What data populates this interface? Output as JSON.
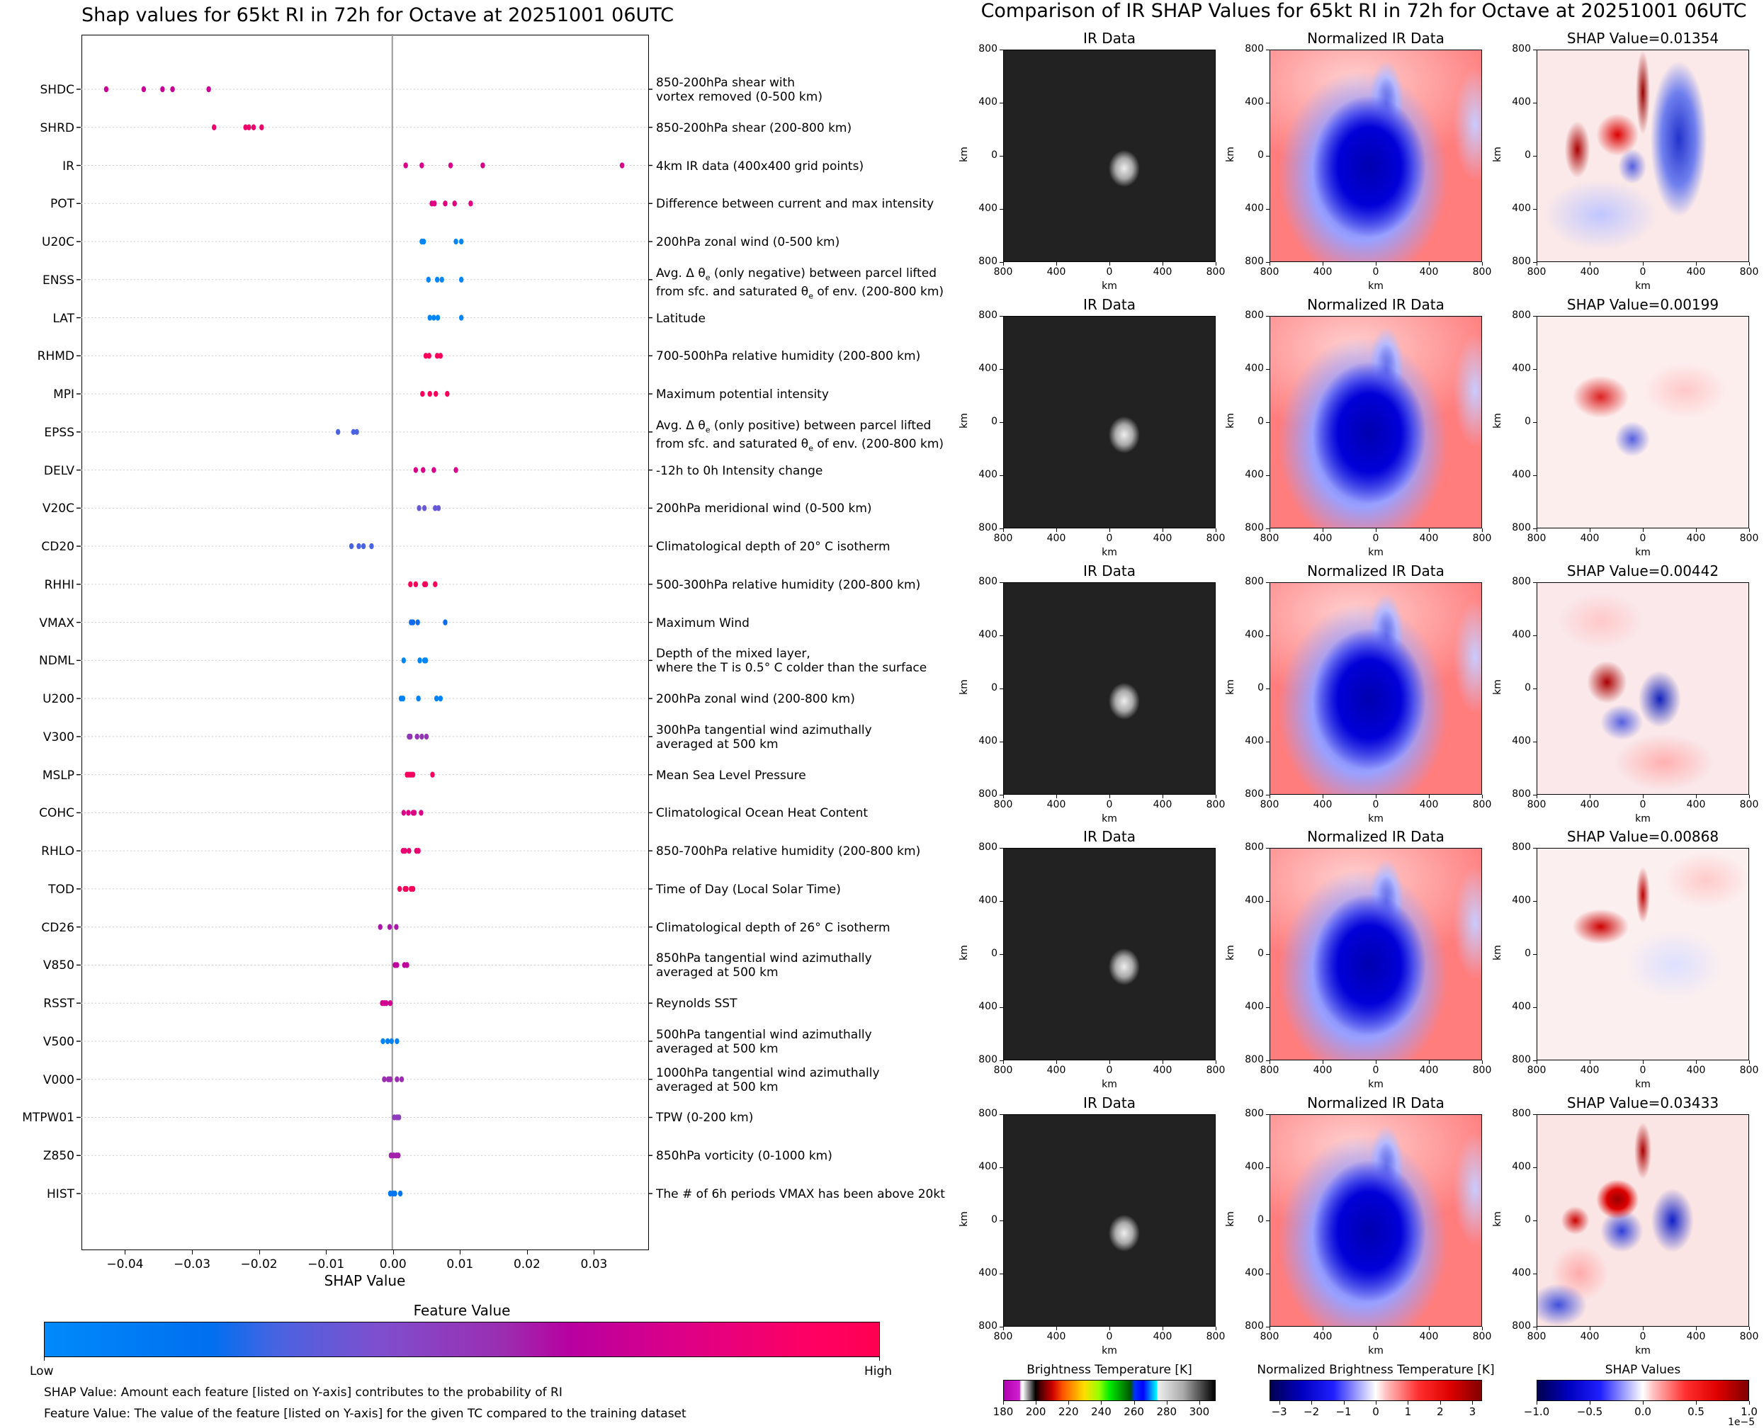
{
  "left_panel": {
    "title": "Shap values for 65kt RI in 72h for Octave at 20251001 06UTC",
    "xlabel": "SHAP Value",
    "x_ticks": [
      "−0.04",
      "−0.03",
      "−0.02",
      "−0.01",
      "0.00",
      "0.01",
      "0.02",
      "0.03"
    ],
    "x_tick_values": [
      -0.04,
      -0.03,
      -0.02,
      -0.01,
      0.0,
      0.01,
      0.02,
      0.03
    ],
    "colorbar": {
      "title": "Feature Value",
      "low_label": "Low",
      "high_label": "High"
    },
    "footnotes": [
      "SHAP Value: Amount each feature [listed on Y-axis] contributes to the probability of RI",
      "Feature Value: The value of the feature [listed on Y-axis] for the given TC compared to the training dataset"
    ]
  },
  "right_panel": {
    "title": "Comparison of IR SHAP Values for 65kt RI in 72h for Octave at 20251001 06UTC",
    "column_titles": [
      "IR Data",
      "Normalized IR Data"
    ],
    "shap_title_prefix": "SHAP Value=",
    "rows": [
      {
        "shap_label": "SHAP Value=0.01354",
        "shap_value": 0.01354
      },
      {
        "shap_label": "SHAP Value=0.00199",
        "shap_value": 0.00199
      },
      {
        "shap_label": "SHAP Value=0.00442",
        "shap_value": 0.00442
      },
      {
        "shap_label": "SHAP Value=0.00868",
        "shap_value": 0.00868
      },
      {
        "shap_label": "SHAP Value=0.03433",
        "shap_value": 0.03433
      }
    ],
    "axis_ticks": [
      "800",
      "400",
      "0",
      "400",
      "800"
    ],
    "axis_unit": "km",
    "colorbars": [
      {
        "title": "Brightness Temperature [K]",
        "ticks": [
          "180",
          "200",
          "220",
          "240",
          "260",
          "280",
          "300"
        ],
        "range": [
          180,
          310
        ]
      },
      {
        "title": "Normalized Brightness Temperature [K]",
        "ticks": [
          "−3",
          "−2",
          "−1",
          "0",
          "1",
          "2",
          "3"
        ],
        "range": [
          -3.3,
          3.3
        ]
      },
      {
        "title": "SHAP Values",
        "ticks": [
          "−1.0",
          "−0.5",
          "0.0",
          "0.5",
          "1.0"
        ],
        "range": [
          -1.0,
          1.0
        ],
        "offset_label": "1e−5"
      }
    ]
  },
  "colors": {
    "feature_low": "#008afb",
    "feature_mid": "#a21cb0",
    "feature_high": "#ff0052",
    "zero_line": "#999999"
  },
  "chart_data": [
    {
      "type": "scatter",
      "title": "Shap values for 65kt RI in 72h for Octave at 20251001 06UTC",
      "xlabel": "SHAP Value",
      "ylabel": "",
      "xlim": [
        -0.0465,
        0.0382
      ],
      "grid": "horizontal dotted per feature",
      "legend": "colorbar bottom (Feature Value: Low → High)",
      "features": [
        {
          "name": "SHDC",
          "description": "850-200hPa shear with\nvortex removed (0-500 km)",
          "points": [
            [
              -0.0427,
              0.72
            ],
            [
              -0.0371,
              0.72
            ],
            [
              -0.0343,
              0.72
            ],
            [
              -0.0328,
              0.72
            ],
            [
              -0.0274,
              0.72
            ]
          ]
        },
        {
          "name": "SHRD",
          "description": "850-200hPa shear (200-800 km)",
          "points": [
            [
              -0.0266,
              0.9
            ],
            [
              -0.0219,
              0.9
            ],
            [
              -0.0214,
              0.9
            ],
            [
              -0.0207,
              0.9
            ],
            [
              -0.0195,
              0.9
            ]
          ]
        },
        {
          "name": "IR",
          "description": "4km IR data (400x400 grid points)",
          "points": [
            [
              0.002,
              0.78
            ],
            [
              0.0044,
              0.78
            ],
            [
              0.0087,
              0.78
            ],
            [
              0.0135,
              0.78
            ],
            [
              0.0343,
              0.78
            ]
          ]
        },
        {
          "name": "POT",
          "description": "Difference between current and max intensity",
          "points": [
            [
              0.0059,
              0.82
            ],
            [
              0.0063,
              0.82
            ],
            [
              0.0079,
              0.82
            ],
            [
              0.0093,
              0.82
            ],
            [
              0.0117,
              0.82
            ]
          ]
        },
        {
          "name": "U20C",
          "description": "200hPa zonal wind (0-500 km)",
          "points": [
            [
              0.0044,
              0.03
            ],
            [
              0.0047,
              0.03
            ],
            [
              0.0095,
              0.03
            ],
            [
              0.0103,
              0.03
            ]
          ]
        },
        {
          "name": "ENSS",
          "description": "Avg. Δ θe (only negative) between parcel lifted\nfrom sfc. and saturated θe of env. (200-800 km)",
          "points": [
            [
              0.0054,
              0.03
            ],
            [
              0.0067,
              0.03
            ],
            [
              0.0074,
              0.03
            ],
            [
              0.0103,
              0.03
            ]
          ]
        },
        {
          "name": "LAT",
          "description": "Latitude",
          "points": [
            [
              0.0056,
              0.03
            ],
            [
              0.0062,
              0.03
            ],
            [
              0.0068,
              0.03
            ],
            [
              0.0103,
              0.03
            ]
          ]
        },
        {
          "name": "RHMD",
          "description": "700-500hPa relative humidity (200-800 km)",
          "points": [
            [
              0.005,
              0.97
            ],
            [
              0.0055,
              0.97
            ],
            [
              0.0067,
              0.97
            ],
            [
              0.0072,
              0.97
            ]
          ]
        },
        {
          "name": "MPI",
          "description": "Maximum potential intensity",
          "points": [
            [
              0.0045,
              0.97
            ],
            [
              0.0056,
              0.97
            ],
            [
              0.0065,
              0.97
            ],
            [
              0.0082,
              0.97
            ]
          ]
        },
        {
          "name": "EPSS",
          "description": "Avg. Δ θe (only positive) between parcel lifted\nfrom sfc. and saturated θe of env. (200-800 km)",
          "points": [
            [
              -0.0081,
              0.3
            ],
            [
              -0.0058,
              0.3
            ],
            [
              -0.0053,
              0.3
            ]
          ]
        },
        {
          "name": "DELV",
          "description": "-12h to 0h Intensity change",
          "points": [
            [
              0.0035,
              0.78
            ],
            [
              0.0046,
              0.78
            ],
            [
              0.0062,
              0.78
            ],
            [
              0.0095,
              0.78
            ]
          ]
        },
        {
          "name": "V20C",
          "description": "200hPa meridional wind (0-500 km)",
          "points": [
            [
              0.004,
              0.38
            ],
            [
              0.0048,
              0.38
            ],
            [
              0.0064,
              0.38
            ],
            [
              0.0069,
              0.38
            ]
          ]
        },
        {
          "name": "CD20",
          "description": "Climatological depth of 20° C isotherm",
          "points": [
            [
              -0.0061,
              0.3
            ],
            [
              -0.005,
              0.3
            ],
            [
              -0.0043,
              0.3
            ],
            [
              -0.0031,
              0.3
            ]
          ]
        },
        {
          "name": "RHHI",
          "description": "500-300hPa relative humidity (200-800 km)",
          "points": [
            [
              0.0027,
              0.97
            ],
            [
              0.0035,
              0.97
            ],
            [
              0.0048,
              0.97
            ],
            [
              0.005,
              0.97
            ],
            [
              0.0064,
              0.97
            ]
          ]
        },
        {
          "name": "VMAX",
          "description": "Maximum Wind",
          "points": [
            [
              0.0028,
              0.22
            ],
            [
              0.0031,
              0.22
            ],
            [
              0.0038,
              0.22
            ],
            [
              0.0079,
              0.22
            ]
          ]
        },
        {
          "name": "NDML",
          "description": "Depth of the mixed layer,\nwhere the T is 0.5° C colder than the surface",
          "points": [
            [
              0.0017,
              0.03
            ],
            [
              0.0041,
              0.03
            ],
            [
              0.0048,
              0.03
            ],
            [
              0.005,
              0.03
            ]
          ]
        },
        {
          "name": "U200",
          "description": "200hPa zonal wind (200-800 km)",
          "points": [
            [
              0.0013,
              0.05
            ],
            [
              0.0016,
              0.05
            ],
            [
              0.0039,
              0.05
            ],
            [
              0.0066,
              0.05
            ],
            [
              0.0072,
              0.05
            ]
          ]
        },
        {
          "name": "V300",
          "description": "300hPa tangential wind azimuthally\naveraged at 500 km",
          "points": [
            [
              0.0025,
              0.55
            ],
            [
              0.0027,
              0.55
            ],
            [
              0.0037,
              0.55
            ],
            [
              0.0044,
              0.55
            ],
            [
              0.0051,
              0.55
            ]
          ]
        },
        {
          "name": "MSLP",
          "description": "Mean Sea Level Pressure",
          "points": [
            [
              0.0022,
              0.95
            ],
            [
              0.0025,
              0.95
            ],
            [
              0.0028,
              0.95
            ],
            [
              0.0031,
              0.95
            ],
            [
              0.006,
              0.95
            ]
          ]
        },
        {
          "name": "COHC",
          "description": "Climatological Ocean Heat Content",
          "points": [
            [
              0.0017,
              0.8
            ],
            [
              0.0024,
              0.8
            ],
            [
              0.0031,
              0.8
            ],
            [
              0.0033,
              0.8
            ],
            [
              0.0043,
              0.8
            ]
          ]
        },
        {
          "name": "RHLO",
          "description": "850-700hPa relative humidity (200-800 km)",
          "points": [
            [
              0.0016,
              0.88
            ],
            [
              0.0019,
              0.88
            ],
            [
              0.0025,
              0.88
            ],
            [
              0.0036,
              0.88
            ],
            [
              0.0039,
              0.88
            ]
          ]
        },
        {
          "name": "TOD",
          "description": "Time of Day (Local Solar Time)",
          "points": [
            [
              0.0011,
              0.97
            ],
            [
              0.0019,
              0.97
            ],
            [
              0.0021,
              0.97
            ],
            [
              0.0028,
              0.97
            ],
            [
              0.0031,
              0.97
            ]
          ]
        },
        {
          "name": "CD26",
          "description": "Climatological depth of 26° C isotherm",
          "points": [
            [
              -0.0018,
              0.62
            ],
            [
              -0.0004,
              0.62
            ],
            [
              0.0006,
              0.62
            ]
          ]
        },
        {
          "name": "V850",
          "description": "850hPa tangential wind azimuthally\naveraged at 500 km",
          "points": [
            [
              0.0004,
              0.68
            ],
            [
              0.0007,
              0.68
            ],
            [
              0.0018,
              0.68
            ],
            [
              0.0022,
              0.68
            ]
          ]
        },
        {
          "name": "RSST",
          "description": "Reynolds SST",
          "points": [
            [
              -0.0015,
              0.75
            ],
            [
              -0.0012,
              0.75
            ],
            [
              -0.0009,
              0.75
            ],
            [
              -0.0003,
              0.75
            ]
          ]
        },
        {
          "name": "V500",
          "description": "500hPa tangential wind azimuthally\naveraged at 500 km",
          "points": [
            [
              -0.0014,
              0.07
            ],
            [
              -0.0007,
              0.07
            ],
            [
              -0.0001,
              0.07
            ],
            [
              0.0007,
              0.07
            ]
          ]
        },
        {
          "name": "V000",
          "description": "1000hPa tangential wind azimuthally\naveraged at 500 km",
          "points": [
            [
              -0.0012,
              0.58
            ],
            [
              -0.0006,
              0.58
            ],
            [
              -0.0003,
              0.58
            ],
            [
              0.0007,
              0.58
            ],
            [
              0.0014,
              0.58
            ]
          ]
        },
        {
          "name": "MTPW01",
          "description": "TPW (0-200 km)",
          "points": [
            [
              0.0003,
              0.52
            ],
            [
              0.0007,
              0.52
            ],
            [
              0.001,
              0.52
            ]
          ]
        },
        {
          "name": "Z850",
          "description": "850hPa vorticity (0-1000 km)",
          "points": [
            [
              -0.0002,
              0.6
            ],
            [
              0.0002,
              0.6
            ],
            [
              0.0006,
              0.6
            ],
            [
              0.0009,
              0.6
            ]
          ]
        },
        {
          "name": "HIST",
          "description": "The # of 6h periods VMAX has been above 20kt",
          "points": [
            [
              -0.0003,
              0.15
            ],
            [
              0.0001,
              0.15
            ],
            [
              0.0004,
              0.15
            ],
            [
              0.0012,
              0.15
            ]
          ]
        }
      ]
    },
    {
      "type": "heatmap",
      "title": "Comparison of IR SHAP Values for 65kt RI in 72h for Octave at 20251001 06UTC",
      "xlabel": "km",
      "ylabel": "km",
      "xlim": [
        -800,
        800
      ],
      "ylim": [
        -800,
        800
      ],
      "panels": [
        [
          "IR Data",
          "Normalized IR Data",
          "SHAP Value=0.01354"
        ],
        [
          "IR Data",
          "Normalized IR Data",
          "SHAP Value=0.00199"
        ],
        [
          "IR Data",
          "Normalized IR Data",
          "SHAP Value=0.00442"
        ],
        [
          "IR Data",
          "Normalized IR Data",
          "SHAP Value=0.00868"
        ],
        [
          "IR Data",
          "Normalized IR Data",
          "SHAP Value=0.03433"
        ]
      ],
      "colorbars": [
        {
          "title": "Brightness Temperature [K]",
          "range": [
            180,
            310
          ]
        },
        {
          "title": "Normalized Brightness Temperature [K]",
          "range": [
            -3.3,
            3.3
          ]
        },
        {
          "title": "SHAP Values",
          "range": [
            -1e-05,
            1e-05
          ]
        }
      ]
    }
  ]
}
